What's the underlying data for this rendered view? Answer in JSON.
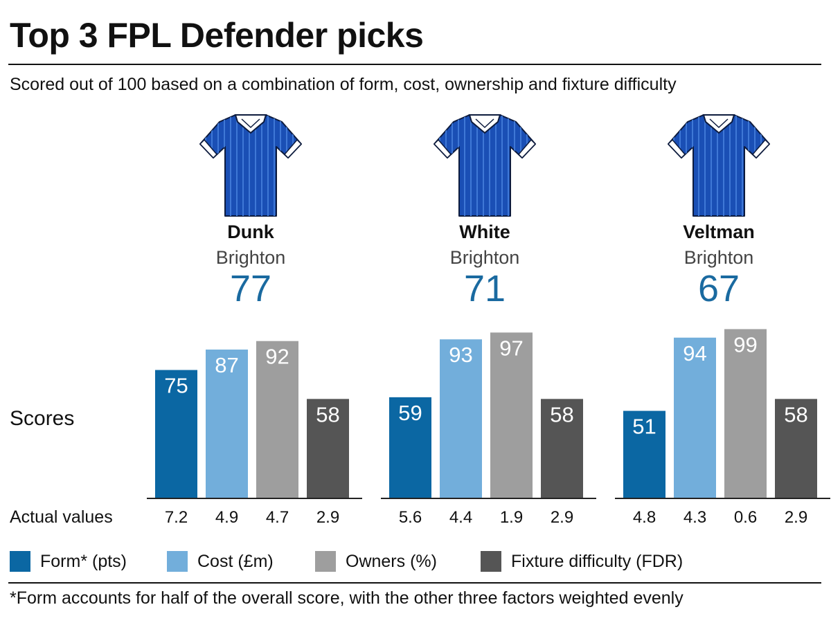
{
  "title": "Top 3 FPL Defender picks",
  "subtitle": "Scored out of 100 based on a combination of form, cost, ownership and fixture difficulty",
  "footnote": "*Form accounts for half of the overall score, with the other three factors weighted evenly",
  "colors": {
    "form": "#0b67a3",
    "cost": "#72aedb",
    "owners": "#9e9e9e",
    "fdr": "#555555",
    "score": "#1a6aa0",
    "shirt_main": "#1a4fb5",
    "shirt_stripe": "#3f78d6",
    "shirt_collar": "#ffffff"
  },
  "legend": [
    {
      "key": "form",
      "label": "Form* (pts)"
    },
    {
      "key": "cost",
      "label": "Cost (£m)"
    },
    {
      "key": "owners",
      "label": "Owners (%)"
    },
    {
      "key": "fdr",
      "label": "Fixture difficulty (FDR)"
    }
  ],
  "chart_data": {
    "type": "bar",
    "row_label_scores": "Scores",
    "row_label_actual": "Actual values",
    "categories": [
      "Form* (pts)",
      "Cost (£m)",
      "Owners (%)",
      "Fixture difficulty (FDR)"
    ],
    "ylim": [
      0,
      100
    ],
    "players": [
      {
        "name": "Dunk",
        "team": "Brighton",
        "overall": "77",
        "scores": [
          75,
          87,
          92,
          58
        ],
        "actual": [
          "7.2",
          "4.9",
          "4.7",
          "2.9"
        ]
      },
      {
        "name": "White",
        "team": "Brighton",
        "overall": "71",
        "scores": [
          59,
          93,
          97,
          58
        ],
        "actual": [
          "5.6",
          "4.4",
          "1.9",
          "2.9"
        ]
      },
      {
        "name": "Veltman",
        "team": "Brighton",
        "overall": "67",
        "scores": [
          51,
          94,
          99,
          58
        ],
        "actual": [
          "4.8",
          "4.3",
          "0.6",
          "2.9"
        ]
      }
    ]
  }
}
